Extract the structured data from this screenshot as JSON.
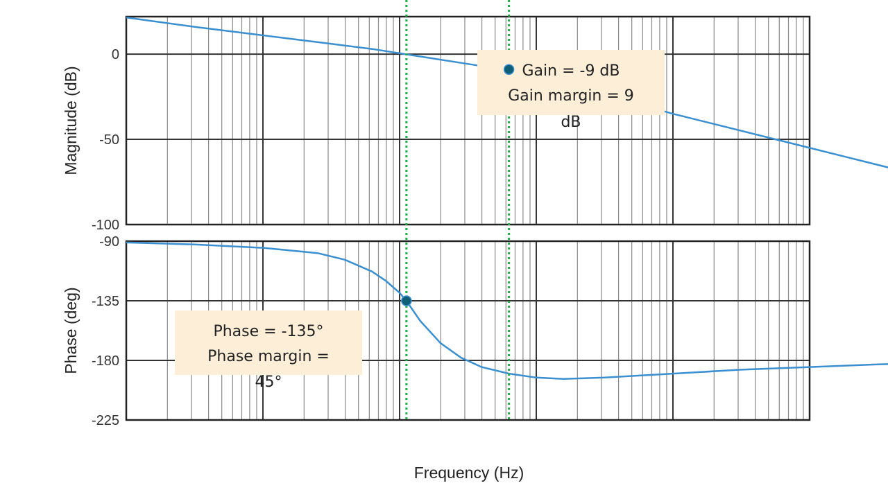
{
  "chart_data": {
    "type": "line",
    "xlabel": "Frequency  (Hz)",
    "x_scale": "log",
    "x_range_decades": 5,
    "grid": true,
    "colors": {
      "curve": "#3a8fd0",
      "marker": "#0f5e78",
      "crossover_lines": "#22aa44",
      "annotation_bg": "#fdeed8",
      "grid": "#888888",
      "major_grid": "#333333"
    },
    "crossover_lines_x": [
      2.05,
      2.8
    ],
    "subplots": [
      {
        "name": "magnitude",
        "ylabel": "Magnitude (dB)",
        "ylim": [
          -100,
          22
        ],
        "yticks": [
          0,
          -50,
          -100
        ],
        "points": [
          [
            0,
            21.5
          ],
          [
            0.5,
            16
          ],
          [
            1,
            11
          ],
          [
            1.5,
            6
          ],
          [
            1.8,
            3
          ],
          [
            2.0,
            0.5
          ],
          [
            2.2,
            -2
          ],
          [
            2.4,
            -4.5
          ],
          [
            2.6,
            -7
          ],
          [
            2.8,
            -9
          ],
          [
            3.2,
            -17
          ],
          [
            3.6,
            -26
          ],
          [
            4.0,
            -35
          ],
          [
            4.4,
            -43
          ],
          [
            4.8,
            -51
          ],
          [
            5.2,
            -59
          ],
          [
            5.6,
            -67
          ],
          [
            6.0,
            -77
          ]
        ],
        "marker": {
          "x": 2.8,
          "y": -9
        },
        "annotation": {
          "lines": [
            "Gain = -9 dB",
            "Gain margin = 9",
            "dB"
          ]
        }
      },
      {
        "name": "phase",
        "ylabel": "Phase (deg)",
        "ylim": [
          -225,
          -90
        ],
        "yticks": [
          -90,
          -135,
          -180,
          -225
        ],
        "points": [
          [
            0,
            -91
          ],
          [
            0.5,
            -92.5
          ],
          [
            1,
            -95
          ],
          [
            1.4,
            -99
          ],
          [
            1.6,
            -104
          ],
          [
            1.8,
            -113
          ],
          [
            1.9,
            -120
          ],
          [
            2.0,
            -129
          ],
          [
            2.05,
            -135
          ],
          [
            2.15,
            -150
          ],
          [
            2.3,
            -167
          ],
          [
            2.45,
            -178
          ],
          [
            2.6,
            -185
          ],
          [
            2.8,
            -190
          ],
          [
            3.0,
            -193
          ],
          [
            3.2,
            -194
          ],
          [
            3.5,
            -193
          ],
          [
            4.0,
            -190
          ],
          [
            4.5,
            -187
          ],
          [
            5.0,
            -185
          ],
          [
            5.5,
            -183
          ],
          [
            6.0,
            -182
          ]
        ],
        "marker": {
          "x": 2.05,
          "y": -135
        },
        "annotation": {
          "lines": [
            "Phase = -135°",
            "Phase margin =",
            "45°"
          ]
        }
      }
    ]
  }
}
